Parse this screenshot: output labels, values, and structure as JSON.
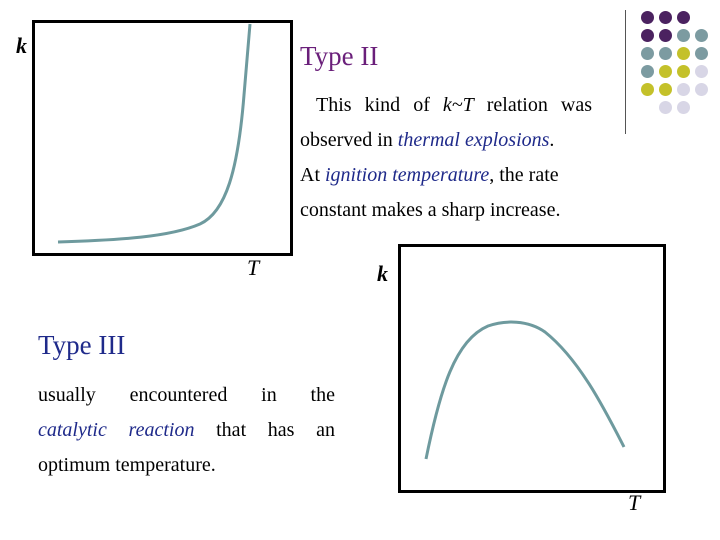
{
  "slide": {
    "plot1": {
      "y_label": "k",
      "x_label": "T"
    },
    "plot2": {
      "y_label": "k",
      "x_label": "T"
    },
    "type2": {
      "heading": "Type II",
      "p1": "This kind of ",
      "p1_rel": "k~T",
      "p1_end": " relation was",
      "p2": "observed in ",
      "p2_hl": "thermal explosions",
      "p2_end": ".",
      "p3": "At ",
      "p3_hl": "ignition temperature",
      "p3_end": ", the rate",
      "p4": "constant makes a sharp increase."
    },
    "type3": {
      "heading": "Type III",
      "l1": "usually  encountered  in  the",
      "l2_hl": "catalytic  reaction",
      "l2_end": "  that  has  an",
      "l3": "optimum temperature."
    }
  },
  "colors": {
    "curve": "#6e9a9e",
    "purple": "#4b2260",
    "teal": "#7c9ba1",
    "olive": "#c4c12a",
    "lavender": "#d8d6e6",
    "highlight": "#1f2a8a"
  },
  "decoration": {
    "icon": "color-dots-grid-icon"
  }
}
